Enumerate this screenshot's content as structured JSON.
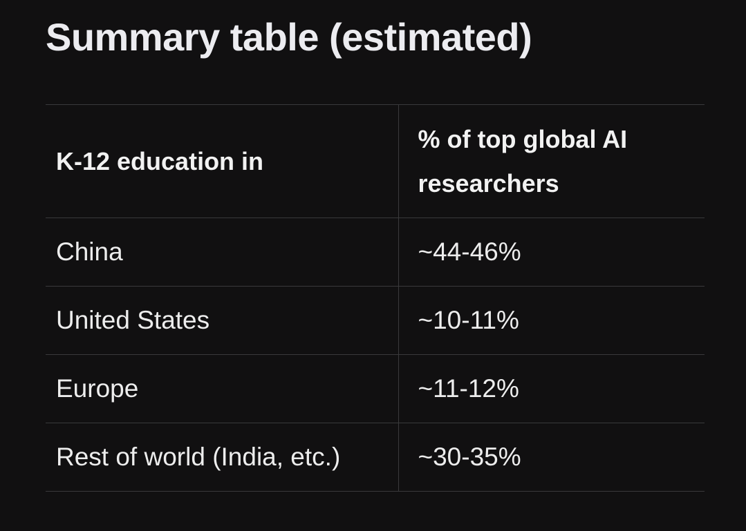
{
  "title": "Summary table (estimated)",
  "table": {
    "headers": [
      "K-12 education in",
      "% of top global AI\nresearchers"
    ],
    "rows": [
      [
        "China",
        "~44-46%"
      ],
      [
        "United States",
        "~10-11%"
      ],
      [
        "Europe",
        "~11-12%"
      ],
      [
        "Rest of world (India, etc.)",
        "~30-35%"
      ]
    ]
  }
}
